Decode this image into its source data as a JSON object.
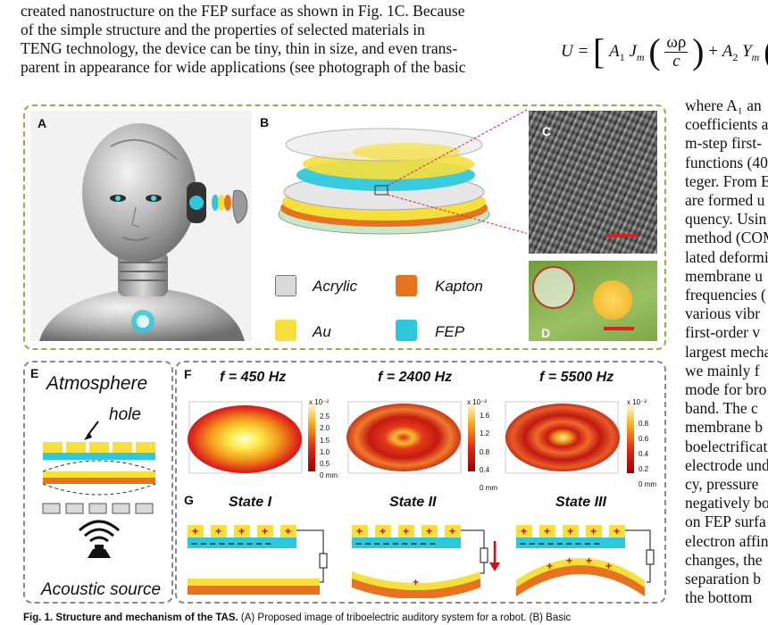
{
  "intro_lines": [
    "created nanostructure on the FEP surface as shown in Fig. 1C. Because",
    "of the simple structure and the properties of selected materials in",
    "TENG technology, the device can be tiny, thin in size, and even trans-",
    "parent in appearance for wide applications (see photograph of the basic"
  ],
  "equation": {
    "u": "U =",
    "a1": "A",
    "sub1": "1",
    "jm": "J",
    "subm": "m",
    "num": "ωρ",
    "den": "c",
    "plus": "+",
    "a2": "A",
    "sub2": "2",
    "ym": "Y"
  },
  "right_column_lines": [
    "where A₁ an",
    "coefficients a",
    "m-step first-",
    "functions (40",
    "teger. From E",
    "are formed u",
    "quency. Usin",
    "method (COM",
    "lated deformi",
    "membrane u",
    "frequencies (",
    "various vibr",
    "first-order v",
    "largest mecha",
    "we mainly f",
    "mode for bro",
    "band. The c",
    "membrane b",
    "boelectrificat",
    "electrode und",
    "cy, pressure",
    "negatively bo",
    "on FEP surfa",
    "electron affin",
    "changes, the",
    "separation b",
    "the bottom"
  ],
  "panels": {
    "a": "A",
    "b": "B",
    "c": "C",
    "d": "D",
    "e": "E",
    "f": "F",
    "g": "G"
  },
  "legend": [
    {
      "label": "Acrylic",
      "color": "#d9d9d9"
    },
    {
      "label": "Kapton",
      "color": "#e8731e"
    },
    {
      "label": "Au",
      "color": "#f7e03c"
    },
    {
      "label": "FEP",
      "color": "#2ec8dc"
    }
  ],
  "panel_e": {
    "atmosphere": "Atmosphere",
    "hole": "hole",
    "acoustic": "Acoustic source"
  },
  "panel_f": [
    {
      "title": "f = 450 Hz",
      "scale": "x 10⁻²",
      "ticks": [
        "2.5",
        "2.0",
        "1.5",
        "1.0",
        "0.5",
        "0 mm"
      ]
    },
    {
      "title": "f = 2400 Hz",
      "scale": "x 10⁻²",
      "ticks": [
        "1.6",
        "1.2",
        "0.8",
        "0.4",
        "0 mm"
      ]
    },
    {
      "title": "f = 5500 Hz",
      "scale": "x 10⁻²",
      "ticks": [
        "0.8",
        "0.6",
        "0.4",
        "0.2",
        "0 mm"
      ]
    }
  ],
  "panel_g": [
    "State I",
    "State II",
    "State III"
  ],
  "caption": {
    "lead": "Fig. 1.  Structure and mechanism of the TAS.",
    "rest": " (A) Proposed image of triboelectric auditory system for a robot. (B) Basic"
  }
}
